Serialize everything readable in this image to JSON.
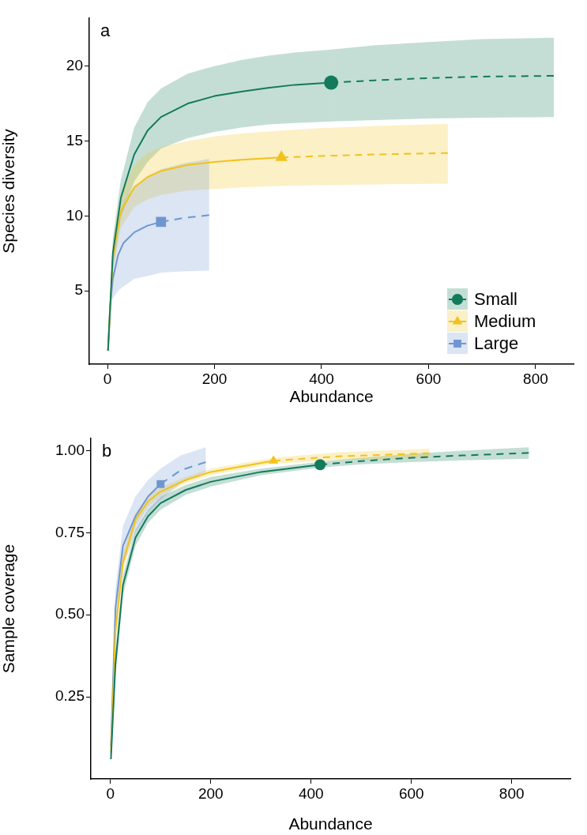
{
  "chart_data": [
    {
      "type": "line",
      "xlabel": "Abundance",
      "ylabel": "Species diversity",
      "annotations": [
        "a"
      ],
      "xlim": [
        -34,
        871
      ],
      "ylim": [
        0.1,
        23.2
      ],
      "xticks": [
        0,
        200,
        400,
        600,
        800
      ],
      "yticks": [
        5,
        10,
        15,
        20
      ],
      "grid": false,
      "legend": "bottom right",
      "series": [
        {
          "name": "Small",
          "type": "scatter",
          "marker": "circle",
          "color": "#137a5b",
          "x": [
            418
          ],
          "values": [
            18.9
          ]
        },
        {
          "line_style": "solid",
          "color": "#137a5b",
          "x": [
            1,
            10,
            25,
            50,
            75,
            100,
            150,
            200,
            250,
            300,
            350,
            418
          ],
          "values": [
            1,
            7.5,
            11.2,
            14.1,
            15.7,
            16.6,
            17.5,
            18.0,
            18.3,
            18.55,
            18.75,
            18.9
          ],
          "lower": [
            1,
            6.5,
            9.9,
            12.3,
            13.6,
            14.5,
            15.2,
            15.6,
            15.9,
            16.1,
            16.2,
            16.3
          ],
          "upper": [
            1,
            8.5,
            12.4,
            15.9,
            17.6,
            18.5,
            19.5,
            20.0,
            20.4,
            20.7,
            20.9,
            21.1
          ]
        },
        {
          "line_style": "dashed",
          "color": "#137a5b",
          "x": [
            418,
            500,
            600,
            700,
            834
          ],
          "values": [
            18.9,
            19.05,
            19.2,
            19.3,
            19.35
          ],
          "lower": [
            16.3,
            16.4,
            16.5,
            16.55,
            16.6
          ],
          "upper": [
            21.1,
            21.4,
            21.6,
            21.8,
            21.9
          ]
        },
        {
          "name": "Medium",
          "type": "scatter",
          "marker": "triangle",
          "color": "#f1c21b",
          "x": [
            325
          ],
          "values": [
            13.9
          ]
        },
        {
          "line_style": "solid",
          "color": "#f1c21b",
          "x": [
            1,
            10,
            25,
            50,
            75,
            100,
            150,
            200,
            250,
            325
          ],
          "values": [
            1,
            7.2,
            10.3,
            11.9,
            12.6,
            13.0,
            13.4,
            13.6,
            13.75,
            13.9
          ],
          "lower": [
            1,
            6.3,
            9.2,
            10.6,
            11.1,
            11.4,
            11.7,
            11.8,
            11.9,
            12.0
          ],
          "upper": [
            1,
            8.2,
            11.5,
            13.4,
            14.2,
            14.6,
            15.0,
            15.3,
            15.5,
            15.7
          ]
        },
        {
          "line_style": "dashed",
          "color": "#f1c21b",
          "x": [
            325,
            400,
            500,
            636
          ],
          "values": [
            13.9,
            14.0,
            14.1,
            14.2
          ],
          "lower": [
            12.0,
            12.05,
            12.1,
            12.15
          ],
          "upper": [
            15.7,
            15.85,
            16.0,
            16.15
          ]
        },
        {
          "name": "Large",
          "type": "scatter",
          "marker": "square",
          "color": "#7096d1",
          "x": [
            100
          ],
          "values": [
            9.6
          ]
        },
        {
          "line_style": "solid",
          "color": "#7096d1",
          "x": [
            1,
            5,
            10,
            20,
            30,
            50,
            75,
            100
          ],
          "values": [
            1,
            4.0,
            5.8,
            7.4,
            8.2,
            8.9,
            9.35,
            9.6
          ],
          "lower": [
            1,
            3.4,
            4.5,
            5.0,
            5.3,
            5.8,
            6.0,
            6.2
          ],
          "upper": [
            1,
            4.6,
            7.2,
            9.8,
            10.8,
            12.0,
            12.6,
            13.1
          ]
        },
        {
          "line_style": "dashed",
          "color": "#7096d1",
          "x": [
            100,
            140,
            190
          ],
          "values": [
            9.6,
            9.85,
            10.05
          ],
          "lower": [
            6.2,
            6.3,
            6.35
          ],
          "upper": [
            13.1,
            13.5,
            13.8
          ]
        }
      ]
    },
    {
      "type": "line",
      "xlabel": "Abundance",
      "ylabel": "Sample coverage",
      "annotations": [
        "b"
      ],
      "xlim": [
        -39,
        917
      ],
      "ylim": [
        0,
        1.037
      ],
      "xticks": [
        0,
        200,
        400,
        600,
        800
      ],
      "yticks": [
        {
          "value": 0.25,
          "label": "0.25"
        },
        {
          "value": 0.5,
          "label": "0.50"
        },
        {
          "value": 0.75,
          "label": "0.75"
        },
        {
          "value": 1,
          "label": "1.00"
        }
      ],
      "grid": false,
      "series": [
        {
          "type": "scatter",
          "marker": "circle",
          "color": "#137a5b",
          "x": [
            418
          ],
          "values": [
            0.957
          ]
        },
        {
          "line_style": "solid",
          "color": "#137a5b",
          "x": [
            1,
            10,
            25,
            50,
            75,
            100,
            150,
            200,
            300,
            418
          ],
          "values": [
            0.06,
            0.35,
            0.59,
            0.735,
            0.8,
            0.84,
            0.88,
            0.905,
            0.935,
            0.957
          ],
          "lower": [
            0.05,
            0.31,
            0.56,
            0.71,
            0.78,
            0.82,
            0.865,
            0.89,
            0.925,
            0.948
          ],
          "upper": [
            0.07,
            0.39,
            0.62,
            0.76,
            0.82,
            0.86,
            0.895,
            0.92,
            0.945,
            0.966
          ]
        },
        {
          "line_style": "dashed",
          "color": "#137a5b",
          "x": [
            418,
            500,
            600,
            700,
            834
          ],
          "values": [
            0.957,
            0.968,
            0.978,
            0.985,
            0.993
          ],
          "lower": [
            0.948,
            0.958,
            0.965,
            0.97,
            0.975
          ],
          "upper": [
            0.966,
            0.978,
            0.99,
            1.0,
            1.01
          ]
        },
        {
          "type": "scatter",
          "marker": "triangle",
          "color": "#f1c21b",
          "x": [
            325
          ],
          "values": [
            0.969
          ]
        },
        {
          "line_style": "solid",
          "color": "#f1c21b",
          "x": [
            1,
            10,
            25,
            50,
            75,
            100,
            150,
            200,
            325
          ],
          "values": [
            0.08,
            0.45,
            0.66,
            0.79,
            0.845,
            0.875,
            0.91,
            0.935,
            0.969
          ],
          "lower": [
            0.07,
            0.41,
            0.63,
            0.77,
            0.83,
            0.862,
            0.9,
            0.925,
            0.96
          ],
          "upper": [
            0.09,
            0.49,
            0.69,
            0.81,
            0.86,
            0.888,
            0.92,
            0.945,
            0.978
          ]
        },
        {
          "line_style": "dashed",
          "color": "#f1c21b",
          "x": [
            325,
            450,
            636
          ],
          "values": [
            0.969,
            0.982,
            0.992
          ],
          "lower": [
            0.96,
            0.97,
            0.978
          ],
          "upper": [
            0.978,
            0.994,
            1.006
          ]
        },
        {
          "type": "scatter",
          "marker": "square",
          "color": "#7096d1",
          "x": [
            100
          ],
          "values": [
            0.898
          ]
        },
        {
          "line_style": "solid",
          "color": "#7096d1",
          "x": [
            1,
            10,
            25,
            50,
            75,
            100
          ],
          "values": [
            0.1,
            0.52,
            0.71,
            0.8,
            0.86,
            0.898
          ],
          "lower": [
            0.08,
            0.45,
            0.65,
            0.75,
            0.81,
            0.85
          ],
          "upper": [
            0.12,
            0.58,
            0.77,
            0.86,
            0.91,
            0.945
          ]
        },
        {
          "line_style": "dashed",
          "color": "#7096d1",
          "x": [
            100,
            140,
            190
          ],
          "values": [
            0.898,
            0.94,
            0.965
          ],
          "lower": [
            0.85,
            0.9,
            0.935
          ],
          "upper": [
            0.945,
            0.985,
            1.01
          ]
        }
      ]
    }
  ]
}
